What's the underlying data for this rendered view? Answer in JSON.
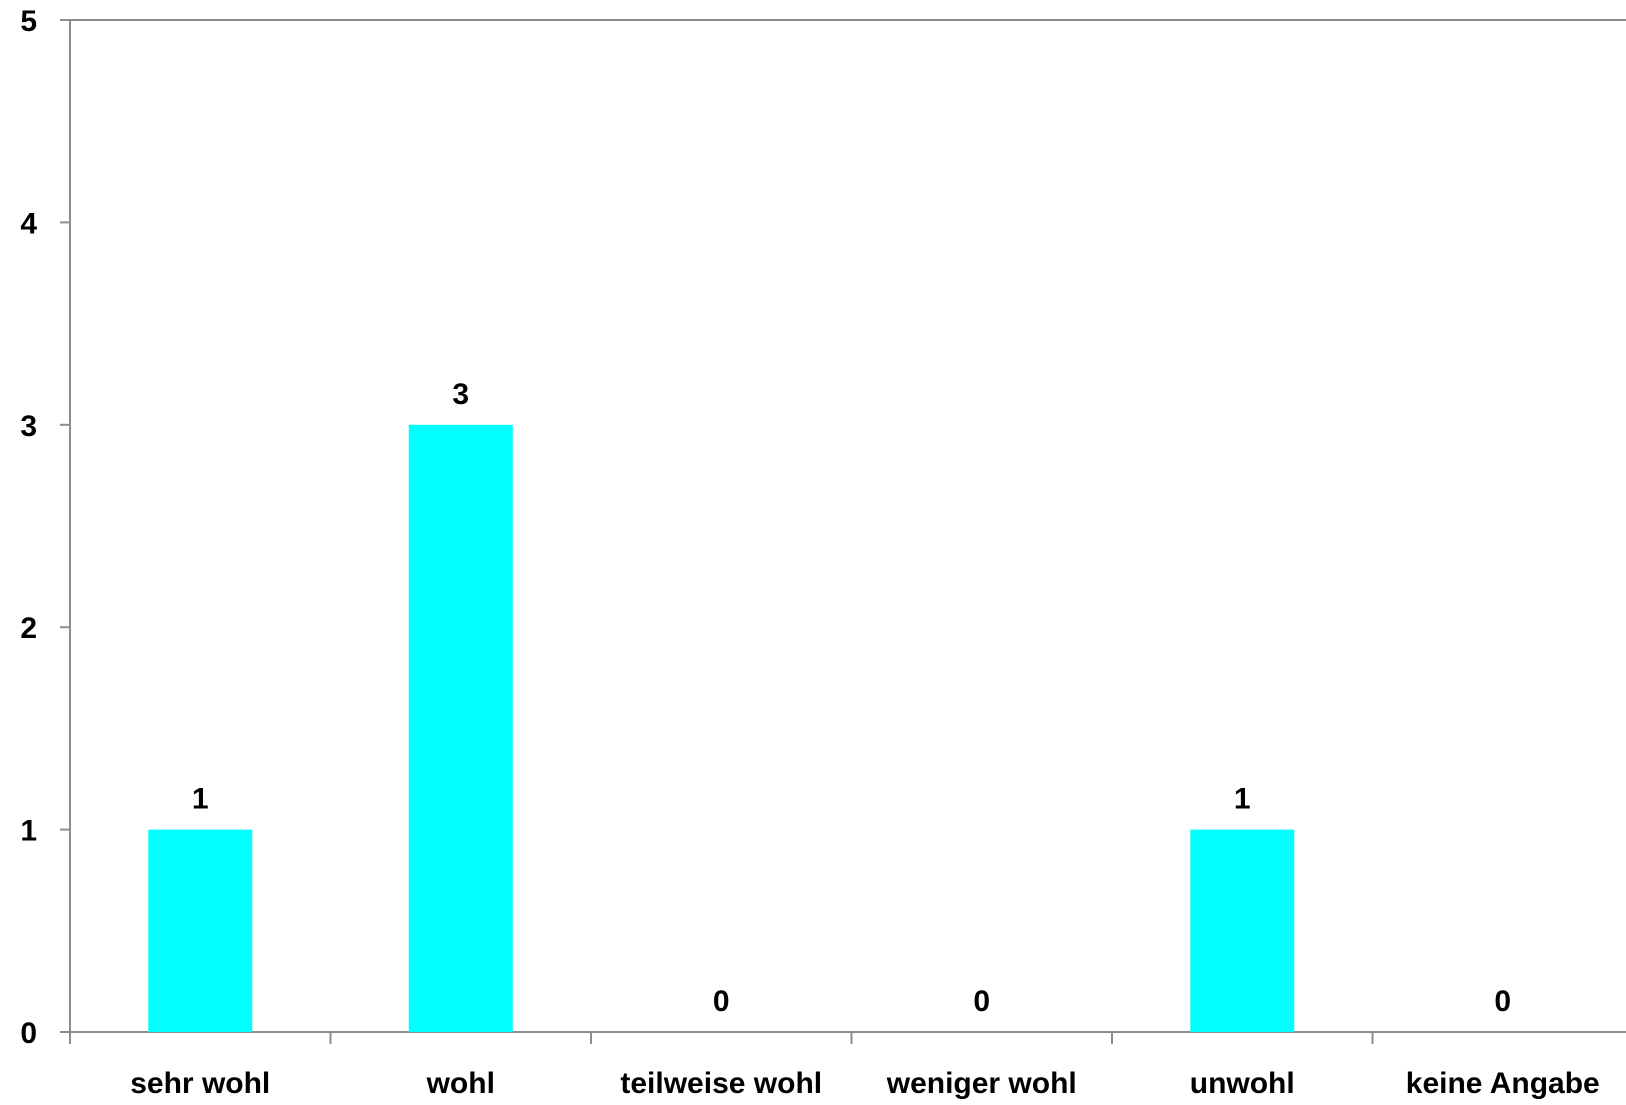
{
  "chart_data": {
    "type": "bar",
    "title": "",
    "xlabel": "",
    "ylabel": "",
    "categories": [
      "sehr wohl",
      "wohl",
      "teilweise wohl",
      "weniger wohl",
      "unwohl",
      "keine Angabe"
    ],
    "values": [
      1,
      3,
      0,
      0,
      1,
      0
    ],
    "data_labels": [
      "1",
      "3",
      "0",
      "0",
      "1",
      "0"
    ],
    "ylim": [
      0,
      5
    ],
    "yticks": [
      "0",
      "1",
      "2",
      "3",
      "4",
      "5"
    ],
    "grid": false,
    "legend": "none",
    "bar_color": "#00FFFF",
    "axis_color": "#8C8C8C"
  }
}
